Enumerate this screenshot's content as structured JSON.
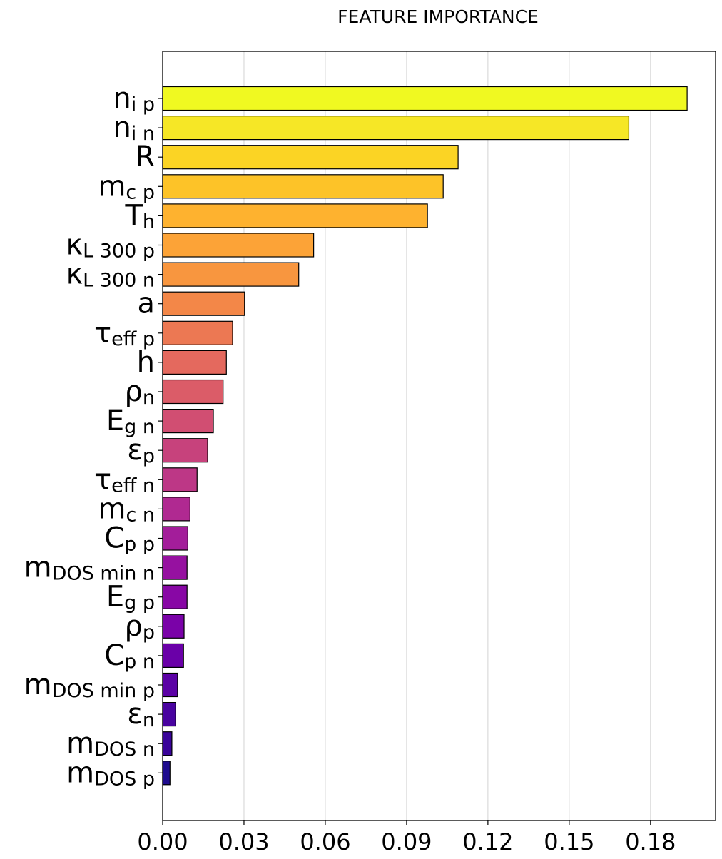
{
  "chart_data": {
    "type": "bar",
    "orientation": "horizontal",
    "title": "FEATURE IMPORTANCE",
    "xlabel": "",
    "ylabel": "",
    "xlim": [
      0,
      0.204
    ],
    "xticks": [
      "0.00",
      "0.03",
      "0.06",
      "0.09",
      "0.12",
      "0.15",
      "0.18"
    ],
    "xtick_values": [
      0,
      0.03,
      0.06,
      0.09,
      0.12,
      0.15,
      0.18
    ],
    "grid": "vertical",
    "colormap": "plasma",
    "categories": [
      {
        "base": "n",
        "sub": "i p"
      },
      {
        "base": "n",
        "sub": "i n"
      },
      {
        "base": "R",
        "sub": ""
      },
      {
        "base": "m",
        "sub": "c p"
      },
      {
        "base": "T",
        "sub": "h"
      },
      {
        "base": "κ",
        "sub": "L 300 p"
      },
      {
        "base": "κ",
        "sub": "L 300 n"
      },
      {
        "base": "a",
        "sub": ""
      },
      {
        "base": "τ",
        "sub": "eff p"
      },
      {
        "base": "h",
        "sub": ""
      },
      {
        "base": "ρ",
        "sub": "n"
      },
      {
        "base": "E",
        "sub": "g n"
      },
      {
        "base": "ε",
        "sub": "p"
      },
      {
        "base": "τ",
        "sub": "eff n"
      },
      {
        "base": "m",
        "sub": "c n"
      },
      {
        "base": "C",
        "sub": "p p"
      },
      {
        "base": "m",
        "sub": "DOS min n"
      },
      {
        "base": "E",
        "sub": "g p"
      },
      {
        "base": "ρ",
        "sub": "p"
      },
      {
        "base": "C",
        "sub": "p n"
      },
      {
        "base": "m",
        "sub": "DOS min p"
      },
      {
        "base": "ε",
        "sub": "n"
      },
      {
        "base": "m",
        "sub": "DOS n"
      },
      {
        "base": "m",
        "sub": "DOS p"
      }
    ],
    "values": [
      0.1935,
      0.172,
      0.109,
      0.1035,
      0.0977,
      0.0557,
      0.0502,
      0.0302,
      0.0258,
      0.0235,
      0.0223,
      0.0187,
      0.0166,
      0.0127,
      0.0101,
      0.0093,
      0.009,
      0.009,
      0.0079,
      0.0077,
      0.0055,
      0.0048,
      0.0034,
      0.0027
    ],
    "colors": [
      "#f0f921",
      "#f6e726",
      "#fbd424",
      "#fdc328",
      "#feb22f",
      "#fca337",
      "#f8963f",
      "#f38748",
      "#ec7853",
      "#e4695e",
      "#db5c68",
      "#d14e72",
      "#c7427c",
      "#bd3786",
      "#b02991",
      "#a31d9a",
      "#9611a0",
      "#8807a5",
      "#7a02a8",
      "#6a00a8",
      "#5b01a5",
      "#4903a0",
      "#3a049a",
      "#1f0c8f"
    ]
  }
}
